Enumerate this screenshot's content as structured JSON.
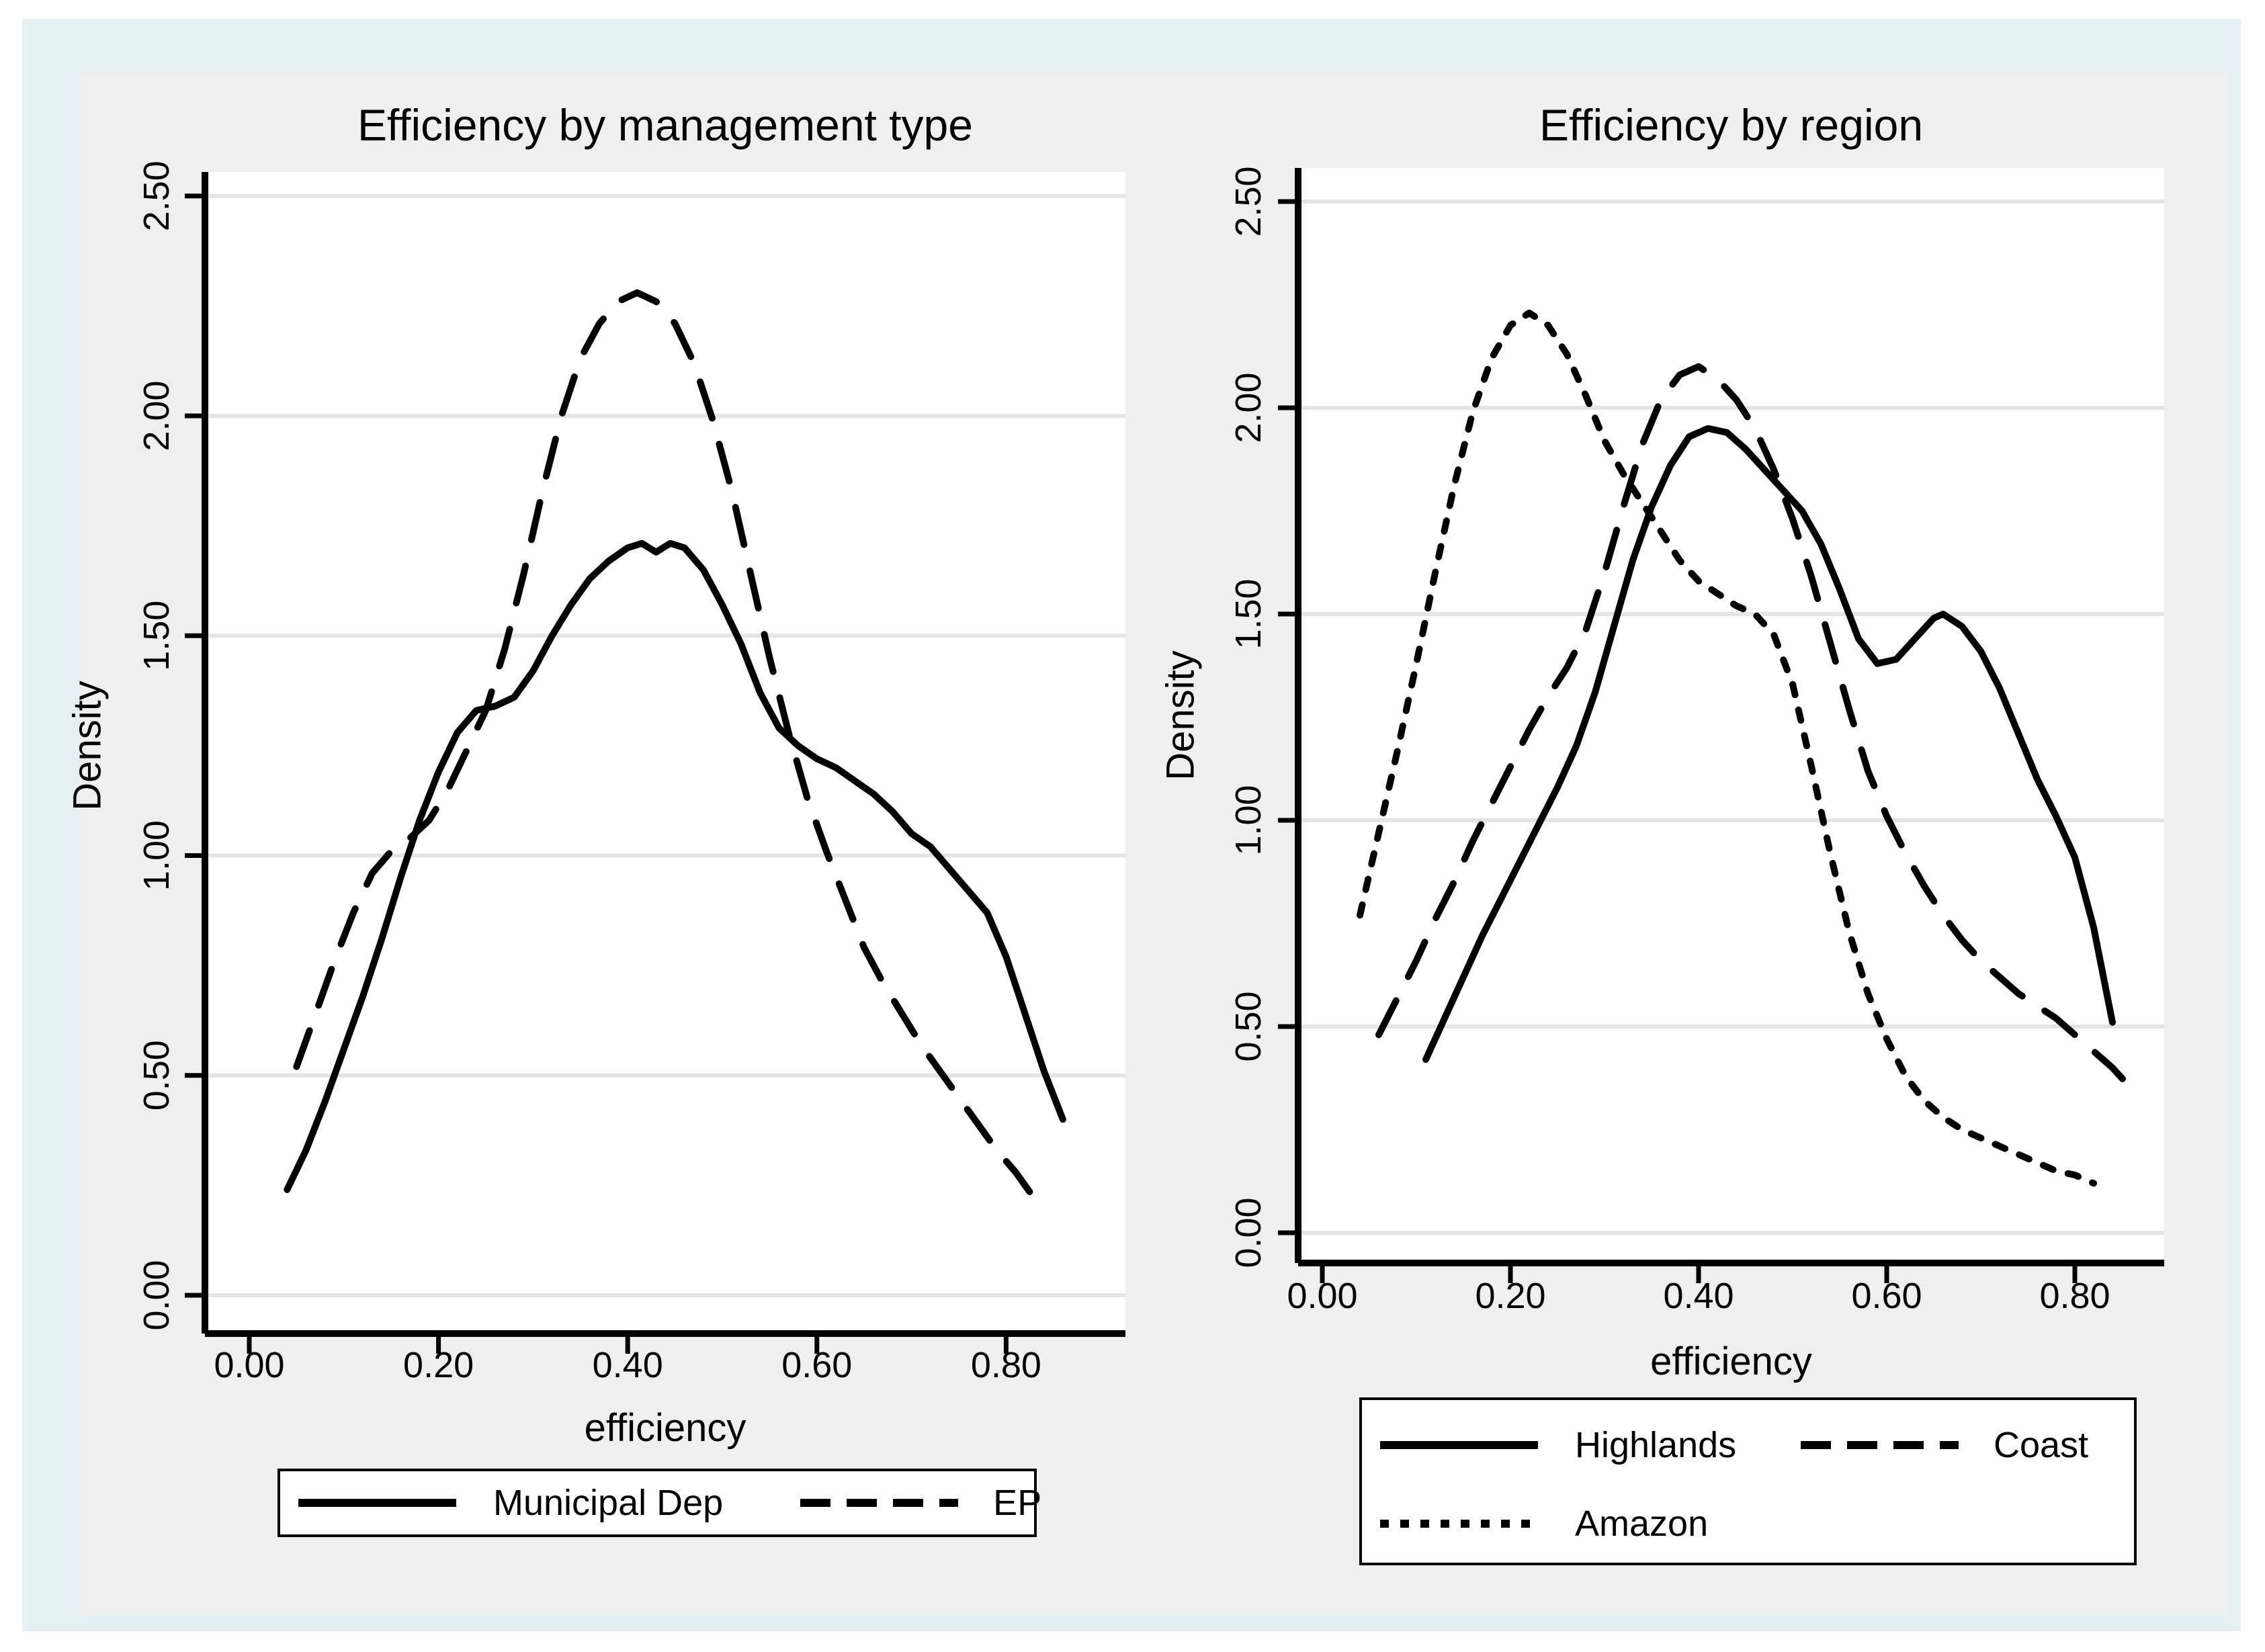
{
  "page": {
    "background": "#ffffff",
    "frame_color": "#e6f0f2",
    "canvas_color": "#efefef",
    "plot_background": "#ffffff",
    "grid_color": "#e4e4e4",
    "axis_color": "#000000",
    "line_color": "#000000"
  },
  "chart_data": [
    {
      "type": "line",
      "title": "Efficiency by management type",
      "xlabel": "efficiency",
      "ylabel": "Density",
      "grid": true,
      "legend_position": "below",
      "xtick_labels": [
        "0.00",
        "0.20",
        "0.40",
        "0.60",
        "0.80"
      ],
      "xtick_values": [
        0,
        0.2,
        0.4,
        0.6,
        0.8
      ],
      "ytick_labels": [
        "0.00",
        "0.50",
        "1.00",
        "1.50",
        "2.00",
        "2.50"
      ],
      "ytick_values": [
        0,
        0.5,
        1,
        1.5,
        2,
        2.5
      ],
      "xlim": [
        -0.047,
        0.926
      ],
      "ylim": [
        -0.09,
        2.56
      ],
      "series": [
        {
          "name": "Municipal Dep",
          "style": "solid",
          "points": [
            [
              0.04,
              0.24
            ],
            [
              0.06,
              0.33
            ],
            [
              0.08,
              0.44
            ],
            [
              0.1,
              0.56
            ],
            [
              0.12,
              0.68
            ],
            [
              0.14,
              0.81
            ],
            [
              0.16,
              0.95
            ],
            [
              0.18,
              1.08
            ],
            [
              0.2,
              1.19
            ],
            [
              0.22,
              1.28
            ],
            [
              0.24,
              1.33
            ],
            [
              0.26,
              1.34
            ],
            [
              0.28,
              1.36
            ],
            [
              0.3,
              1.42
            ],
            [
              0.32,
              1.5
            ],
            [
              0.34,
              1.57
            ],
            [
              0.36,
              1.63
            ],
            [
              0.38,
              1.67
            ],
            [
              0.4,
              1.7
            ],
            [
              0.415,
              1.71
            ],
            [
              0.43,
              1.69
            ],
            [
              0.445,
              1.71
            ],
            [
              0.46,
              1.7
            ],
            [
              0.48,
              1.65
            ],
            [
              0.5,
              1.57
            ],
            [
              0.52,
              1.48
            ],
            [
              0.54,
              1.37
            ],
            [
              0.56,
              1.29
            ],
            [
              0.58,
              1.25
            ],
            [
              0.6,
              1.22
            ],
            [
              0.62,
              1.2
            ],
            [
              0.64,
              1.17
            ],
            [
              0.66,
              1.14
            ],
            [
              0.68,
              1.1
            ],
            [
              0.7,
              1.05
            ],
            [
              0.72,
              1.02
            ],
            [
              0.74,
              0.97
            ],
            [
              0.76,
              0.92
            ],
            [
              0.78,
              0.87
            ],
            [
              0.8,
              0.77
            ],
            [
              0.82,
              0.64
            ],
            [
              0.84,
              0.51
            ],
            [
              0.86,
              0.4
            ]
          ]
        },
        {
          "name": "EP",
          "style": "dashed",
          "points": [
            [
              0.05,
              0.52
            ],
            [
              0.07,
              0.64
            ],
            [
              0.09,
              0.76
            ],
            [
              0.11,
              0.87
            ],
            [
              0.13,
              0.96
            ],
            [
              0.15,
              1.01
            ],
            [
              0.17,
              1.04
            ],
            [
              0.19,
              1.08
            ],
            [
              0.21,
              1.15
            ],
            [
              0.23,
              1.24
            ],
            [
              0.25,
              1.33
            ],
            [
              0.27,
              1.47
            ],
            [
              0.29,
              1.64
            ],
            [
              0.31,
              1.83
            ],
            [
              0.33,
              2.0
            ],
            [
              0.35,
              2.13
            ],
            [
              0.37,
              2.21
            ],
            [
              0.39,
              2.26
            ],
            [
              0.41,
              2.28
            ],
            [
              0.43,
              2.26
            ],
            [
              0.45,
              2.21
            ],
            [
              0.47,
              2.12
            ],
            [
              0.49,
              1.99
            ],
            [
              0.51,
              1.83
            ],
            [
              0.53,
              1.64
            ],
            [
              0.55,
              1.45
            ],
            [
              0.57,
              1.28
            ],
            [
              0.59,
              1.13
            ],
            [
              0.61,
              1.01
            ],
            [
              0.63,
              0.9
            ],
            [
              0.65,
              0.79
            ],
            [
              0.67,
              0.71
            ],
            [
              0.69,
              0.64
            ],
            [
              0.71,
              0.57
            ],
            [
              0.73,
              0.51
            ],
            [
              0.75,
              0.45
            ],
            [
              0.77,
              0.39
            ],
            [
              0.79,
              0.33
            ],
            [
              0.81,
              0.28
            ],
            [
              0.83,
              0.22
            ]
          ]
        }
      ]
    },
    {
      "type": "line",
      "title": "Efficiency by region",
      "xlabel": "efficiency",
      "ylabel": "Density",
      "grid": true,
      "legend_position": "below",
      "xtick_labels": [
        "0.00",
        "0.20",
        "0.40",
        "0.60",
        "0.80"
      ],
      "xtick_values": [
        0,
        0.2,
        0.4,
        0.6,
        0.8
      ],
      "ytick_labels": [
        "0.00",
        "0.50",
        "1.00",
        "1.50",
        "2.00",
        "2.50"
      ],
      "ytick_values": [
        0,
        0.5,
        1,
        1.5,
        2,
        2.5
      ],
      "xlim": [
        -0.026,
        0.895
      ],
      "ylim": [
        -0.073,
        2.58
      ],
      "series": [
        {
          "name": "Highlands",
          "style": "solid",
          "points": [
            [
              0.11,
              0.42
            ],
            [
              0.13,
              0.52
            ],
            [
              0.15,
              0.62
            ],
            [
              0.17,
              0.72
            ],
            [
              0.19,
              0.81
            ],
            [
              0.21,
              0.9
            ],
            [
              0.23,
              0.99
            ],
            [
              0.25,
              1.08
            ],
            [
              0.27,
              1.18
            ],
            [
              0.29,
              1.31
            ],
            [
              0.31,
              1.47
            ],
            [
              0.33,
              1.63
            ],
            [
              0.35,
              1.76
            ],
            [
              0.37,
              1.86
            ],
            [
              0.39,
              1.93
            ],
            [
              0.41,
              1.95
            ],
            [
              0.43,
              1.94
            ],
            [
              0.45,
              1.9
            ],
            [
              0.47,
              1.85
            ],
            [
              0.49,
              1.8
            ],
            [
              0.51,
              1.75
            ],
            [
              0.53,
              1.67
            ],
            [
              0.55,
              1.56
            ],
            [
              0.57,
              1.44
            ],
            [
              0.59,
              1.38
            ],
            [
              0.61,
              1.39
            ],
            [
              0.63,
              1.44
            ],
            [
              0.65,
              1.49
            ],
            [
              0.66,
              1.5
            ],
            [
              0.68,
              1.47
            ],
            [
              0.7,
              1.41
            ],
            [
              0.72,
              1.32
            ],
            [
              0.74,
              1.21
            ],
            [
              0.76,
              1.1
            ],
            [
              0.78,
              1.01
            ],
            [
              0.8,
              0.91
            ],
            [
              0.82,
              0.74
            ],
            [
              0.84,
              0.51
            ]
          ]
        },
        {
          "name": "Coast",
          "style": "dashed",
          "points": [
            [
              0.06,
              0.48
            ],
            [
              0.08,
              0.57
            ],
            [
              0.1,
              0.66
            ],
            [
              0.12,
              0.76
            ],
            [
              0.14,
              0.85
            ],
            [
              0.16,
              0.95
            ],
            [
              0.18,
              1.04
            ],
            [
              0.2,
              1.13
            ],
            [
              0.22,
              1.22
            ],
            [
              0.24,
              1.3
            ],
            [
              0.26,
              1.37
            ],
            [
              0.28,
              1.46
            ],
            [
              0.3,
              1.6
            ],
            [
              0.32,
              1.76
            ],
            [
              0.34,
              1.91
            ],
            [
              0.36,
              2.02
            ],
            [
              0.38,
              2.08
            ],
            [
              0.4,
              2.1
            ],
            [
              0.42,
              2.07
            ],
            [
              0.44,
              2.02
            ],
            [
              0.46,
              1.95
            ],
            [
              0.48,
              1.85
            ],
            [
              0.5,
              1.73
            ],
            [
              0.52,
              1.59
            ],
            [
              0.54,
              1.43
            ],
            [
              0.56,
              1.27
            ],
            [
              0.58,
              1.12
            ],
            [
              0.6,
              1.01
            ],
            [
              0.62,
              0.92
            ],
            [
              0.64,
              0.84
            ],
            [
              0.66,
              0.77
            ],
            [
              0.68,
              0.71
            ],
            [
              0.7,
              0.66
            ],
            [
              0.72,
              0.62
            ],
            [
              0.74,
              0.58
            ],
            [
              0.76,
              0.55
            ],
            [
              0.78,
              0.52
            ],
            [
              0.8,
              0.48
            ],
            [
              0.82,
              0.44
            ],
            [
              0.84,
              0.4
            ],
            [
              0.86,
              0.35
            ]
          ]
        },
        {
          "name": "Amazon",
          "style": "dotted",
          "points": [
            [
              0.04,
              0.77
            ],
            [
              0.06,
              0.97
            ],
            [
              0.08,
              1.17
            ],
            [
              0.1,
              1.38
            ],
            [
              0.12,
              1.6
            ],
            [
              0.14,
              1.81
            ],
            [
              0.16,
              1.99
            ],
            [
              0.18,
              2.12
            ],
            [
              0.2,
              2.2
            ],
            [
              0.22,
              2.23
            ],
            [
              0.24,
              2.2
            ],
            [
              0.26,
              2.13
            ],
            [
              0.28,
              2.03
            ],
            [
              0.3,
              1.92
            ],
            [
              0.32,
              1.84
            ],
            [
              0.34,
              1.77
            ],
            [
              0.36,
              1.7
            ],
            [
              0.38,
              1.63
            ],
            [
              0.4,
              1.58
            ],
            [
              0.42,
              1.55
            ],
            [
              0.44,
              1.52
            ],
            [
              0.46,
              1.5
            ],
            [
              0.48,
              1.45
            ],
            [
              0.5,
              1.33
            ],
            [
              0.52,
              1.13
            ],
            [
              0.54,
              0.92
            ],
            [
              0.56,
              0.73
            ],
            [
              0.58,
              0.58
            ],
            [
              0.6,
              0.47
            ],
            [
              0.62,
              0.38
            ],
            [
              0.64,
              0.32
            ],
            [
              0.66,
              0.28
            ],
            [
              0.68,
              0.25
            ],
            [
              0.7,
              0.23
            ],
            [
              0.72,
              0.21
            ],
            [
              0.74,
              0.19
            ],
            [
              0.76,
              0.17
            ],
            [
              0.78,
              0.15
            ],
            [
              0.8,
              0.14
            ],
            [
              0.82,
              0.12
            ]
          ]
        }
      ]
    }
  ]
}
